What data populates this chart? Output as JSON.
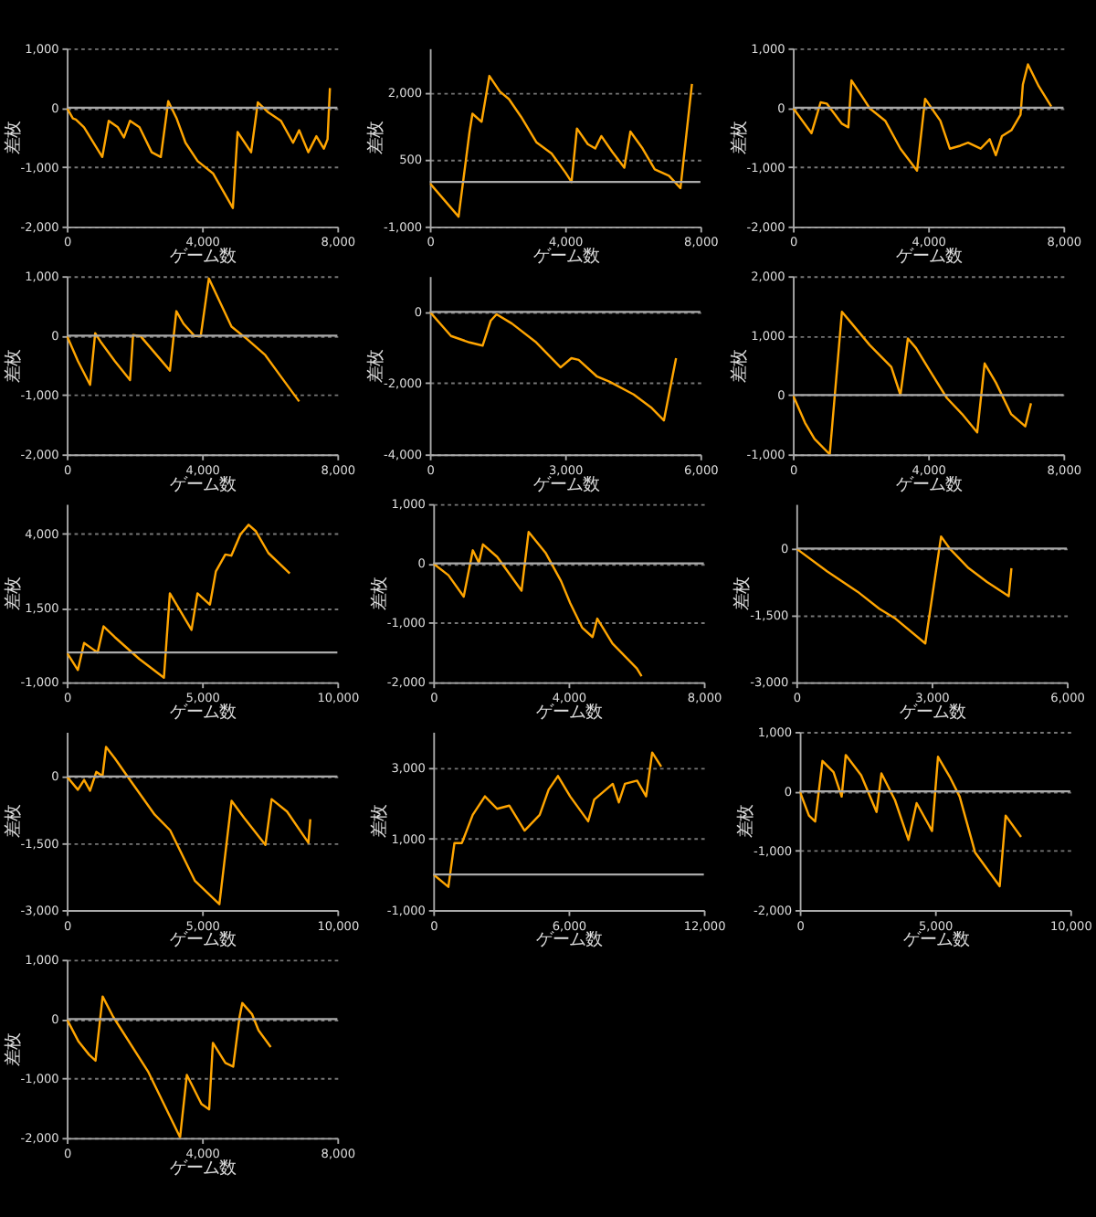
{
  "chart_data": [
    {
      "type": "line",
      "xlabel": "ゲーム数",
      "ylabel": "差枚",
      "xlim": [
        0,
        8000
      ],
      "xticks": [
        0,
        {
          "value": 4000,
          "label": "4,000"
        },
        {
          "value": 8000,
          "label": "8,000"
        }
      ],
      "ylim": [
        -2000,
        1000
      ],
      "yticks": [
        {
          "value": -2000,
          "label": "-2,000"
        },
        {
          "value": -1000,
          "label": "-1,000"
        },
        0,
        {
          "value": 1000,
          "label": "1,000"
        }
      ],
      "grid": "y",
      "ref_lines": [
        {
          "axis": "y",
          "value": 0
        }
      ],
      "series": [
        {
          "color": "#ffa500",
          "x": [
            0,
            180,
            270,
            510,
            1050,
            1240,
            1510,
            1690,
            1870,
            2150,
            2510,
            2780,
            3000,
            3240,
            3510,
            3870,
            4330,
            4910,
            5050,
            5450,
            5650,
            5960,
            6330,
            6690,
            6870,
            7140,
            7380,
            7600,
            7710,
            7780
          ],
          "values": [
            0,
            -180,
            -200,
            -330,
            -830,
            -220,
            -330,
            -500,
            -220,
            -330,
            -750,
            -830,
            110,
            -170,
            -590,
            -900,
            -1110,
            -1690,
            -410,
            -750,
            90,
            -80,
            -220,
            -590,
            -380,
            -750,
            -480,
            -690,
            -530,
            330
          ]
        }
      ]
    },
    {
      "type": "line",
      "xlabel": "ゲーム数",
      "ylabel": "差枚",
      "xlim": [
        0,
        8000
      ],
      "xticks": [
        0,
        {
          "value": 4000,
          "label": "4,000"
        },
        {
          "value": 8000,
          "label": "8,000"
        }
      ],
      "ylim": [
        -1000,
        3000
      ],
      "yticks": [
        {
          "value": -1000,
          "label": "-1,000"
        },
        500,
        {
          "value": 2000,
          "label": "2,000"
        }
      ],
      "grid": "y",
      "ref_lines": [
        {
          "axis": "y",
          "value": 0
        }
      ],
      "series": [
        {
          "color": "#ffa500",
          "x": [
            0,
            850,
            1170,
            1260,
            1530,
            1760,
            2070,
            2340,
            2700,
            3150,
            3600,
            4010,
            4190,
            4350,
            4670,
            4890,
            5070,
            5390,
            5750,
            5930,
            6290,
            6650,
            7070,
            7410,
            7750
          ],
          "values": [
            -30,
            -780,
            1100,
            1530,
            1350,
            2380,
            2030,
            1860,
            1460,
            890,
            640,
            210,
            0,
            1200,
            850,
            750,
            1030,
            680,
            320,
            1130,
            750,
            280,
            140,
            -140,
            2200
          ]
        }
      ]
    },
    {
      "type": "line",
      "xlabel": "ゲーム数",
      "ylabel": "差枚",
      "xlim": [
        0,
        8000
      ],
      "xticks": [
        0,
        {
          "value": 4000,
          "label": "4,000"
        },
        {
          "value": 8000,
          "label": "8,000"
        }
      ],
      "ylim": [
        -2000,
        1000
      ],
      "yticks": [
        {
          "value": -2000,
          "label": "-2,000"
        },
        {
          "value": -1000,
          "label": "-1,000"
        },
        0,
        {
          "value": 1000,
          "label": "1,000"
        }
      ],
      "grid": "y",
      "ref_lines": [
        {
          "axis": "y",
          "value": 0
        }
      ],
      "series": [
        {
          "color": "#ffa500",
          "x": [
            0,
            550,
            820,
            1000,
            1450,
            1640,
            1730,
            2090,
            2270,
            2730,
            3180,
            3670,
            3910,
            4360,
            4640,
            4950,
            5180,
            5550,
            5820,
            6000,
            6180,
            6460,
            6730,
            6800,
            6950,
            7270,
            7640
          ],
          "values": [
            0,
            -430,
            90,
            70,
            -270,
            -330,
            460,
            150,
            -10,
            -220,
            -690,
            -1060,
            150,
            -220,
            -690,
            -640,
            -590,
            -690,
            -530,
            -800,
            -480,
            -380,
            -120,
            390,
            730,
            360,
            20
          ]
        }
      ]
    },
    {
      "type": "line",
      "xlabel": "ゲーム数",
      "ylabel": "差枚",
      "xlim": [
        0,
        8000
      ],
      "xticks": [
        0,
        {
          "value": 4000,
          "label": "4,000"
        },
        {
          "value": 8000,
          "label": "8,000"
        }
      ],
      "ylim": [
        -2000,
        1000
      ],
      "yticks": [
        {
          "value": -2000,
          "label": "-2,000"
        },
        {
          "value": -1000,
          "label": "-1,000"
        },
        0,
        {
          "value": 1000,
          "label": "1,000"
        }
      ],
      "grid": "y",
      "ref_lines": [
        {
          "axis": "y",
          "value": 0
        }
      ],
      "series": [
        {
          "color": "#ffa500",
          "x": [
            0,
            330,
            690,
            840,
            1020,
            1420,
            1870,
            1960,
            2180,
            3050,
            3240,
            3450,
            3780,
            3960,
            4200,
            4870,
            5330,
            5870,
            6330,
            6870
          ],
          "values": [
            0,
            -430,
            -830,
            40,
            -120,
            -430,
            -750,
            10,
            -10,
            -590,
            410,
            200,
            -10,
            -10,
            960,
            150,
            -60,
            -330,
            -690,
            -1110
          ]
        }
      ]
    },
    {
      "type": "line",
      "xlabel": "ゲーム数",
      "ylabel": "差枚",
      "xlim": [
        0,
        6000
      ],
      "xticks": [
        0,
        {
          "value": 3000,
          "label": "3,000"
        },
        {
          "value": 6000,
          "label": "6,000"
        }
      ],
      "ylim": [
        -4000,
        1000
      ],
      "yticks": [
        {
          "value": -4000,
          "label": "-4,000"
        },
        {
          "value": -2000,
          "label": "-2,000"
        },
        0
      ],
      "grid": "y",
      "ref_lines": [
        {
          "axis": "y",
          "value": 0
        }
      ],
      "series": [
        {
          "color": "#ffa500",
          "x": [
            0,
            470,
            880,
            1170,
            1350,
            1480,
            1820,
            2360,
            2900,
            3140,
            3300,
            3710,
            3980,
            4520,
            4920,
            5190,
            5460
          ],
          "values": [
            0,
            -680,
            -860,
            -950,
            -250,
            -70,
            -330,
            -860,
            -1560,
            -1300,
            -1350,
            -1820,
            -1960,
            -2320,
            -2700,
            -3050,
            -1300
          ]
        }
      ]
    },
    {
      "type": "line",
      "xlabel": "ゲーム数",
      "ylabel": "差枚",
      "xlim": [
        0,
        8000
      ],
      "xticks": [
        0,
        {
          "value": 4000,
          "label": "4,000"
        },
        {
          "value": 8000,
          "label": "8,000"
        }
      ],
      "ylim": [
        -1000,
        2000
      ],
      "yticks": [
        {
          "value": -1000,
          "label": "-1,000"
        },
        0,
        {
          "value": 1000,
          "label": "1,000"
        },
        {
          "value": 2000,
          "label": "2,000"
        }
      ],
      "grid": "y",
      "ref_lines": [
        {
          "axis": "y",
          "value": 0
        }
      ],
      "series": [
        {
          "color": "#ffa500",
          "x": [
            0,
            360,
            640,
            1090,
            1450,
            1730,
            2270,
            2910,
            3180,
            3400,
            3640,
            4090,
            4550,
            5000,
            5450,
            5670,
            6000,
            6450,
            6870,
            7040
          ],
          "values": [
            0,
            -470,
            -740,
            -1000,
            1400,
            1210,
            840,
            470,
            0,
            950,
            790,
            370,
            -50,
            -320,
            -630,
            530,
            210,
            -320,
            -530,
            -140
          ]
        }
      ]
    },
    {
      "type": "line",
      "xlabel": "ゲーム数",
      "ylabel": "差枚",
      "xlim": [
        0,
        10000
      ],
      "xticks": [
        0,
        {
          "value": 5000,
          "label": "5,000"
        },
        {
          "value": 10000,
          "label": "10,000"
        }
      ],
      "ylim": [
        -1000,
        5000
      ],
      "yticks": [
        {
          "value": -1000,
          "label": "-1,000"
        },
        {
          "value": 1500,
          "label": "1,500"
        },
        {
          "value": 4000,
          "label": "4,000"
        }
      ],
      "grid": "y",
      "ref_lines": [
        {
          "axis": "y",
          "value": 0
        }
      ],
      "series": [
        {
          "color": "#ffa500",
          "x": [
            0,
            410,
            640,
            980,
            1140,
            1360,
            1770,
            2680,
            3590,
            3810,
            4610,
            4830,
            5290,
            5510,
            5860,
            6080,
            6420,
            6720,
            6990,
            7450,
            8240
          ],
          "values": [
            0,
            -590,
            320,
            100,
            0,
            880,
            520,
            -220,
            -850,
            1990,
            760,
            1990,
            1610,
            2730,
            3300,
            3260,
            3980,
            4300,
            4080,
            3350,
            2660
          ]
        }
      ]
    },
    {
      "type": "line",
      "xlabel": "ゲーム数",
      "ylabel": "差枚",
      "xlim": [
        0,
        8000
      ],
      "xticks": [
        0,
        {
          "value": 4000,
          "label": "4,000"
        },
        {
          "value": 8000,
          "label": "8,000"
        }
      ],
      "ylim": [
        -2000,
        1000
      ],
      "yticks": [
        {
          "value": -2000,
          "label": "-2,000"
        },
        {
          "value": -1000,
          "label": "-1,000"
        },
        0,
        {
          "value": 1000,
          "label": "1,000"
        }
      ],
      "grid": "y",
      "ref_lines": [
        {
          "axis": "y",
          "value": 0
        }
      ],
      "series": [
        {
          "color": "#ffa500",
          "x": [
            0,
            450,
            900,
            1170,
            1350,
            1470,
            1890,
            2610,
            2820,
            3330,
            3780,
            4050,
            4400,
            4710,
            4850,
            5300,
            6020,
            6160
          ],
          "values": [
            0,
            -200,
            -560,
            220,
            10,
            320,
            110,
            -460,
            530,
            170,
            -300,
            -670,
            -1080,
            -1240,
            -930,
            -1350,
            -1770,
            -1900
          ]
        }
      ]
    },
    {
      "type": "line",
      "xlabel": "ゲーム数",
      "ylabel": "差枚",
      "xlim": [
        0,
        6000
      ],
      "xticks": [
        0,
        {
          "value": 3000,
          "label": "3,000"
        },
        {
          "value": 6000,
          "label": "6,000"
        }
      ],
      "ylim": [
        -3000,
        1000
      ],
      "yticks": [
        {
          "value": -3000,
          "label": "-3,000"
        },
        {
          "value": -1500,
          "label": "-1,500"
        },
        0
      ],
      "grid": "y",
      "ref_lines": [
        {
          "axis": "y",
          "value": 0
        }
      ],
      "series": [
        {
          "color": "#ffa500",
          "x": [
            0,
            680,
            1360,
            1840,
            2180,
            2860,
            3210,
            3410,
            3820,
            4230,
            4710,
            4770
          ],
          "values": [
            0,
            -510,
            -970,
            -1350,
            -1560,
            -2130,
            270,
            -10,
            -440,
            -750,
            -1070,
            -440
          ]
        }
      ]
    },
    {
      "type": "line",
      "xlabel": "ゲーム数",
      "ylabel": "差枚",
      "xlim": [
        0,
        10000
      ],
      "xticks": [
        0,
        {
          "value": 5000,
          "label": "5,000"
        },
        {
          "value": 10000,
          "label": "10,000"
        }
      ],
      "ylim": [
        -3000,
        1000
      ],
      "yticks": [
        {
          "value": -3000,
          "label": "-3,000"
        },
        {
          "value": -1500,
          "label": "-1,500"
        },
        0
      ],
      "grid": "y",
      "ref_lines": [
        {
          "axis": "y",
          "value": 0
        }
      ],
      "series": [
        {
          "color": "#ffa500",
          "x": [
            0,
            410,
            640,
            860,
            1090,
            1320,
            1450,
            1770,
            2230,
            3250,
            3820,
            4730,
            5640,
            6090,
            6550,
            7340,
            7570,
            8140,
            8930,
            9000
          ],
          "values": [
            0,
            -300,
            -80,
            -320,
            100,
            10,
            660,
            410,
            10,
            -860,
            -1210,
            -2340,
            -2870,
            -550,
            -930,
            -1540,
            -510,
            -790,
            -1490,
            -960
          ]
        }
      ]
    },
    {
      "type": "line",
      "xlabel": "ゲーム数",
      "ylabel": "差枚",
      "xlim": [
        0,
        12000
      ],
      "xticks": [
        0,
        {
          "value": 6000,
          "label": "6,000"
        },
        {
          "value": 12000,
          "label": "12,000"
        }
      ],
      "ylim": [
        -1000,
        4000
      ],
      "yticks": [
        {
          "value": -1000,
          "label": "-1,000"
        },
        {
          "value": 1000,
          "label": "1,000"
        },
        {
          "value": 3000,
          "label": "3,000"
        }
      ],
      "grid": "y",
      "ref_lines": [
        {
          "axis": "y",
          "value": 0
        }
      ],
      "series": [
        {
          "color": "#ffa500",
          "x": [
            0,
            670,
            940,
            1270,
            1750,
            2290,
            2830,
            3370,
            4050,
            4720,
            5120,
            5530,
            6070,
            6870,
            7140,
            7960,
            8230,
            8500,
            9040,
            9440,
            9710,
            10110
          ],
          "values": [
            0,
            -350,
            880,
            880,
            1670,
            2190,
            1840,
            1930,
            1230,
            1670,
            2380,
            2760,
            2190,
            1490,
            2100,
            2540,
            2020,
            2540,
            2630,
            2190,
            3420,
            3020
          ]
        }
      ]
    },
    {
      "type": "line",
      "xlabel": "ゲーム数",
      "ylabel": "差枚",
      "xlim": [
        0,
        10000
      ],
      "xticks": [
        0,
        {
          "value": 5000,
          "label": "5,000"
        },
        {
          "value": 10000,
          "label": "10,000"
        }
      ],
      "ylim": [
        -2000,
        1000
      ],
      "yticks": [
        {
          "value": -2000,
          "label": "-2,000"
        },
        {
          "value": -1000,
          "label": "-1,000"
        },
        0,
        {
          "value": 1000,
          "label": "1,000"
        }
      ],
      "grid": "y",
      "ref_lines": [
        {
          "axis": "y",
          "value": 0
        }
      ],
      "series": [
        {
          "color": "#ffa500",
          "x": [
            0,
            340,
            570,
            840,
            1250,
            1550,
            1700,
            2270,
            2840,
            3020,
            3520,
            4020,
            4320,
            4890,
            5110,
            5570,
            5910,
            6480,
            7390,
            7610,
            8180
          ],
          "values": [
            0,
            -410,
            -510,
            510,
            320,
            -90,
            610,
            270,
            -350,
            300,
            -150,
            -820,
            -200,
            -670,
            580,
            220,
            -90,
            -1030,
            -1600,
            -410,
            -770
          ]
        }
      ]
    },
    {
      "type": "line",
      "xlabel": "ゲーム数",
      "ylabel": "差枚",
      "xlim": [
        0,
        8000
      ],
      "xticks": [
        0,
        {
          "value": 4000,
          "label": "4,000"
        },
        {
          "value": 8000,
          "label": "8,000"
        }
      ],
      "ylim": [
        -2000,
        1000
      ],
      "yticks": [
        {
          "value": -2000,
          "label": "-2,000"
        },
        {
          "value": -1000,
          "label": "-1,000"
        },
        0,
        {
          "value": 1000,
          "label": "1,000"
        }
      ],
      "grid": "y",
      "ref_lines": [
        {
          "axis": "y",
          "value": 0
        }
      ],
      "series": [
        {
          "color": "#ffa500",
          "x": [
            0,
            350,
            660,
            850,
            1060,
            1370,
            2400,
            3350,
            3550,
            3980,
            4210,
            4320,
            4690,
            4920,
            5110,
            5190,
            5480,
            5670,
            6030
          ],
          "values": [
            0,
            -380,
            -600,
            -700,
            380,
            40,
            -880,
            -1990,
            -940,
            -1430,
            -1520,
            -400,
            -740,
            -800,
            40,
            270,
            80,
            -190,
            -470
          ]
        }
      ]
    }
  ]
}
